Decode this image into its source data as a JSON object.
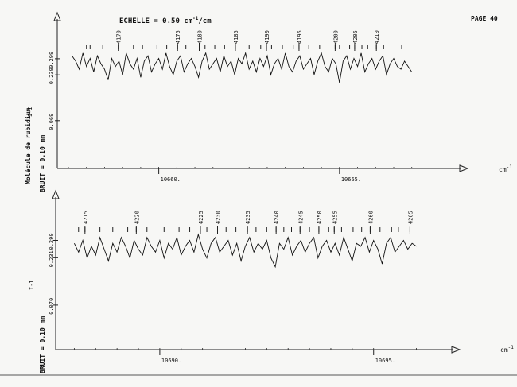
{
  "page": {
    "label": "PAGE 40"
  },
  "scale": {
    "prefix": "ECHELLE = 0.50 cm",
    "exponent": "-1",
    "suffix": "/cm"
  },
  "axis_unit": {
    "base": "cm",
    "exponent": "-1"
  },
  "side_labels": {
    "molecule": "Molécule de rubidium",
    "noise_top": "BRUIT = 0.10 mm",
    "noise_bottom": "BRUIT = 0.10 mm",
    "i_symbol": "I-I"
  },
  "chart_data": [
    {
      "type": "line",
      "panel": "top",
      "xlabel": "cm-1",
      "ylabel": "",
      "xlim": [
        10657.5,
        10667.6
      ],
      "ylim": [
        0.03,
        0.34
      ],
      "x_ticks": [
        10660,
        10665
      ],
      "x_tick_labels": [
        "10660.",
        "10665."
      ],
      "y_ticks": [
        0.299,
        0.239,
        0.069
      ],
      "y_tick_labels": [
        "0.299",
        "0.239",
        "0.069"
      ],
      "line_numbers": [
        {
          "label": "4170",
          "x": 10658.88
        },
        {
          "label": "4175",
          "x": 10660.52
        },
        {
          "label": "4180",
          "x": 10661.12
        },
        {
          "label": "4185",
          "x": 10662.12
        },
        {
          "label": "4190",
          "x": 10662.98
        },
        {
          "label": "4195",
          "x": 10663.88
        },
        {
          "label": "4200",
          "x": 10664.88
        },
        {
          "label": "4205",
          "x": 10665.42
        },
        {
          "label": "4210",
          "x": 10666.02
        }
      ],
      "line_markers": [
        10658.0,
        10658.1,
        10658.45,
        10658.88,
        10659.3,
        10659.55,
        10659.95,
        10660.22,
        10660.52,
        10660.75,
        10661.12,
        10661.28,
        10661.55,
        10661.82,
        10662.12,
        10662.5,
        10662.82,
        10662.98,
        10663.12,
        10663.42,
        10663.72,
        10663.88,
        10664.15,
        10664.45,
        10664.88,
        10665.0,
        10665.28,
        10665.42,
        10665.62,
        10665.78,
        10666.02,
        10666.22,
        10666.72
      ],
      "series": [
        {
          "x": [
            10657.6,
            10657.7,
            10657.8,
            10657.9,
            10658.0,
            10658.1,
            10658.2,
            10658.3,
            10658.4,
            10658.5,
            10658.6,
            10658.7,
            10658.8,
            10658.9,
            10659.0,
            10659.1,
            10659.2,
            10659.3,
            10659.4,
            10659.5,
            10659.6,
            10659.7,
            10659.8,
            10659.9,
            10660.0,
            10660.1,
            10660.2,
            10660.3,
            10660.4,
            10660.5,
            10660.6,
            10660.7,
            10660.8,
            10660.9,
            10661.0,
            10661.1,
            10661.2,
            10661.3,
            10661.4,
            10661.5,
            10661.6,
            10661.7,
            10661.8,
            10661.9,
            10662.0,
            10662.1,
            10662.2,
            10662.3,
            10662.4,
            10662.5,
            10662.6,
            10662.7,
            10662.8,
            10662.9,
            10663.0,
            10663.1,
            10663.2,
            10663.3,
            10663.4,
            10663.5,
            10663.6,
            10663.7,
            10663.8,
            10663.9,
            10664.0,
            10664.1,
            10664.2,
            10664.3,
            10664.4,
            10664.5,
            10664.6,
            10664.7,
            10664.8,
            10664.9,
            10665.0,
            10665.1,
            10665.2,
            10665.3,
            10665.4,
            10665.5,
            10665.6,
            10665.7,
            10665.8,
            10665.9,
            10666.0,
            10666.1,
            10666.2,
            10666.3,
            10666.4,
            10666.5,
            10666.6,
            10666.7,
            10666.8,
            10666.9,
            10667.0
          ],
          "values": [
            0.31,
            0.29,
            0.26,
            0.32,
            0.27,
            0.3,
            0.25,
            0.31,
            0.28,
            0.26,
            0.22,
            0.3,
            0.27,
            0.29,
            0.24,
            0.32,
            0.28,
            0.26,
            0.3,
            0.23,
            0.29,
            0.31,
            0.25,
            0.28,
            0.3,
            0.26,
            0.32,
            0.27,
            0.24,
            0.29,
            0.31,
            0.25,
            0.28,
            0.3,
            0.27,
            0.23,
            0.29,
            0.32,
            0.26,
            0.28,
            0.3,
            0.25,
            0.31,
            0.27,
            0.29,
            0.24,
            0.3,
            0.28,
            0.32,
            0.26,
            0.29,
            0.25,
            0.3,
            0.27,
            0.31,
            0.24,
            0.28,
            0.3,
            0.26,
            0.32,
            0.27,
            0.25,
            0.29,
            0.31,
            0.26,
            0.28,
            0.3,
            0.24,
            0.29,
            0.32,
            0.27,
            0.25,
            0.3,
            0.28,
            0.21,
            0.29,
            0.31,
            0.26,
            0.3,
            0.27,
            0.32,
            0.25,
            0.28,
            0.3,
            0.26,
            0.29,
            0.31,
            0.24,
            0.28,
            0.3,
            0.27,
            0.26,
            0.29,
            0.27,
            0.25
          ]
        }
      ]
    },
    {
      "type": "line",
      "panel": "bottom",
      "xlabel": "cm-1",
      "ylabel": "",
      "xlim": [
        10687.9,
        10696.4
      ],
      "ylim": [
        0.04,
        0.34
      ],
      "x_ticks": [
        10690,
        10695
      ],
      "x_tick_labels": [
        "10690.",
        "10695."
      ],
      "y_ticks": [
        0.29,
        0.231,
        0.07
      ],
      "y_tick_labels": [
        "0.290",
        "0.231",
        "0.070"
      ],
      "line_numbers": [
        {
          "label": "4215",
          "x": 10688.25
        },
        {
          "label": "4220",
          "x": 10689.45
        },
        {
          "label": "4225",
          "x": 10690.95
        },
        {
          "label": "4230",
          "x": 10691.35
        },
        {
          "label": "4235",
          "x": 10692.05
        },
        {
          "label": "4240",
          "x": 10692.72
        },
        {
          "label": "4245",
          "x": 10693.28
        },
        {
          "label": "4250",
          "x": 10693.72
        },
        {
          "label": "4255",
          "x": 10694.08
        },
        {
          "label": "4260",
          "x": 10694.92
        },
        {
          "label": "4265",
          "x": 10695.85
        }
      ],
      "line_markers": [
        10688.1,
        10688.25,
        10688.6,
        10688.9,
        10689.25,
        10689.45,
        10689.7,
        10690.1,
        10690.45,
        10690.7,
        10690.95,
        10691.1,
        10691.35,
        10691.55,
        10691.78,
        10692.05,
        10692.25,
        10692.5,
        10692.72,
        10692.9,
        10693.08,
        10693.28,
        10693.5,
        10693.72,
        10693.95,
        10694.08,
        10694.25,
        10694.52,
        10694.72,
        10694.92,
        10695.15,
        10695.42,
        10695.58,
        10695.85
      ],
      "series": [
        {
          "x": [
            10688.0,
            10688.1,
            10688.2,
            10688.3,
            10688.4,
            10688.5,
            10688.6,
            10688.7,
            10688.8,
            10688.9,
            10689.0,
            10689.1,
            10689.2,
            10689.3,
            10689.4,
            10689.5,
            10689.6,
            10689.7,
            10689.8,
            10689.9,
            10690.0,
            10690.1,
            10690.2,
            10690.3,
            10690.4,
            10690.5,
            10690.6,
            10690.7,
            10690.8,
            10690.9,
            10691.0,
            10691.1,
            10691.2,
            10691.3,
            10691.4,
            10691.5,
            10691.6,
            10691.7,
            10691.8,
            10691.9,
            10692.0,
            10692.1,
            10692.2,
            10692.3,
            10692.4,
            10692.5,
            10692.6,
            10692.7,
            10692.8,
            10692.9,
            10693.0,
            10693.1,
            10693.2,
            10693.3,
            10693.4,
            10693.5,
            10693.6,
            10693.7,
            10693.8,
            10693.9,
            10694.0,
            10694.1,
            10694.2,
            10694.3,
            10694.4,
            10694.5,
            10694.6,
            10694.7,
            10694.8,
            10694.9,
            10695.0,
            10695.1,
            10695.2,
            10695.3,
            10695.4,
            10695.5,
            10695.6,
            10695.7,
            10695.8,
            10695.9,
            10696.0
          ],
          "values": [
            0.28,
            0.25,
            0.29,
            0.23,
            0.27,
            0.24,
            0.3,
            0.26,
            0.22,
            0.28,
            0.25,
            0.3,
            0.27,
            0.23,
            0.29,
            0.26,
            0.24,
            0.3,
            0.27,
            0.25,
            0.29,
            0.23,
            0.28,
            0.26,
            0.3,
            0.24,
            0.27,
            0.29,
            0.25,
            0.31,
            0.26,
            0.23,
            0.28,
            0.3,
            0.25,
            0.27,
            0.29,
            0.24,
            0.28,
            0.22,
            0.27,
            0.3,
            0.25,
            0.28,
            0.26,
            0.29,
            0.23,
            0.2,
            0.28,
            0.26,
            0.3,
            0.24,
            0.27,
            0.29,
            0.25,
            0.28,
            0.3,
            0.23,
            0.27,
            0.29,
            0.25,
            0.28,
            0.24,
            0.3,
            0.26,
            0.22,
            0.28,
            0.27,
            0.3,
            0.25,
            0.29,
            0.26,
            0.21,
            0.28,
            0.3,
            0.25,
            0.27,
            0.29,
            0.26,
            0.28,
            0.27
          ]
        }
      ]
    }
  ]
}
